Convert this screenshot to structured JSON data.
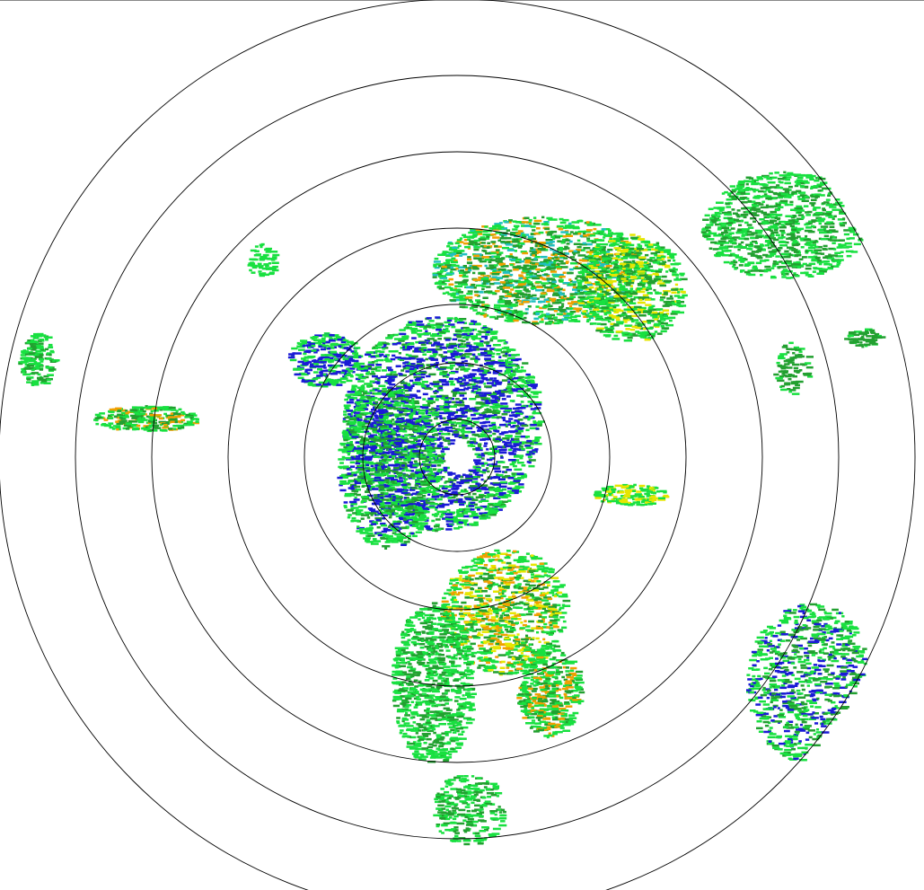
{
  "radar": {
    "product": "reflectivity-ppi",
    "palette": {
      "weak": "#1a1ad6",
      "light": "#18e040",
      "moderate": "#22a030",
      "heavy": "#e6e600",
      "intense": "#f0a000",
      "extreme": "#e02020",
      "cyan": "#20c0c0"
    },
    "range_ring_color": "#000000",
    "background": "#ffffff"
  }
}
